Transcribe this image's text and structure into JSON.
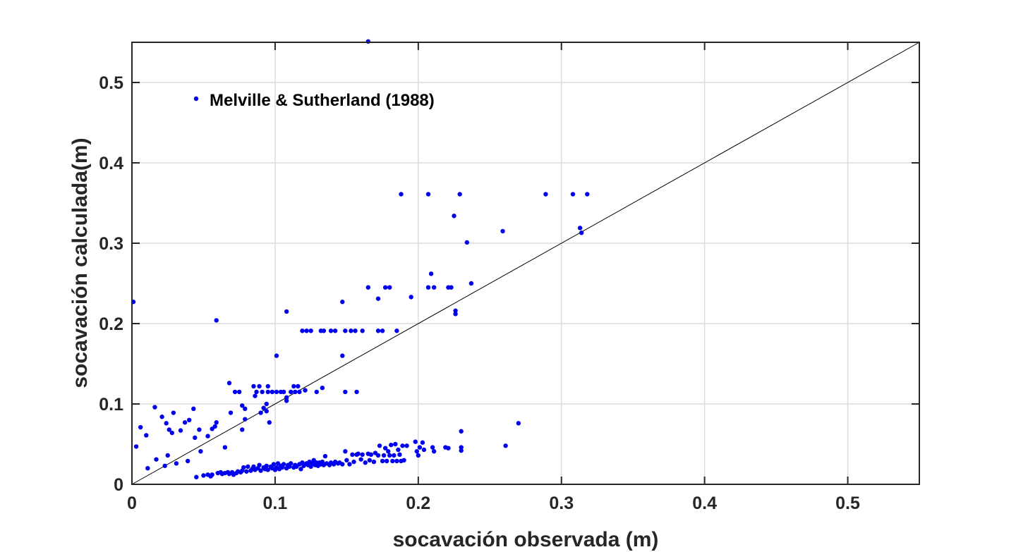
{
  "chart_data": {
    "type": "scatter",
    "xlabel": "socavación observada (m)",
    "ylabel": "socavación calculada(m)",
    "xlim": [
      0,
      0.55
    ],
    "ylim": [
      0,
      0.55
    ],
    "xticks": [
      0,
      0.1,
      0.2,
      0.3,
      0.4,
      0.5
    ],
    "yticks": [
      0,
      0.1,
      0.2,
      0.3,
      0.4,
      0.5
    ],
    "xtick_labels": [
      "0",
      "0.1",
      "0.2",
      "0.3",
      "0.4",
      "0.5"
    ],
    "ytick_labels": [
      "0",
      "0.1",
      "0.2",
      "0.3",
      "0.4",
      "0.5"
    ],
    "grid": true,
    "legend_position": "top-left",
    "reference_line": {
      "from": [
        0,
        0
      ],
      "to": [
        0.55,
        0.55
      ],
      "color": "#000000"
    },
    "colors": {
      "marker": "#0000ee",
      "axis": "#262626",
      "grid": "#dcdcdc"
    },
    "series": [
      {
        "name": "Melville & Sutherland (1988)",
        "points": [
          [
            0.165,
            0.551
          ],
          [
            0.001,
            0.227
          ],
          [
            0.188,
            0.361
          ],
          [
            0.207,
            0.361
          ],
          [
            0.229,
            0.361
          ],
          [
            0.289,
            0.361
          ],
          [
            0.308,
            0.361
          ],
          [
            0.318,
            0.361
          ],
          [
            0.225,
            0.334
          ],
          [
            0.259,
            0.315
          ],
          [
            0.313,
            0.319
          ],
          [
            0.314,
            0.313
          ],
          [
            0.234,
            0.301
          ],
          [
            0.209,
            0.262
          ],
          [
            0.207,
            0.245
          ],
          [
            0.211,
            0.245
          ],
          [
            0.221,
            0.245
          ],
          [
            0.223,
            0.245
          ],
          [
            0.165,
            0.245
          ],
          [
            0.177,
            0.245
          ],
          [
            0.18,
            0.245
          ],
          [
            0.237,
            0.25
          ],
          [
            0.172,
            0.231
          ],
          [
            0.195,
            0.233
          ],
          [
            0.147,
            0.227
          ],
          [
            0.226,
            0.216
          ],
          [
            0.226,
            0.212
          ],
          [
            0.108,
            0.215
          ],
          [
            0.059,
            0.204
          ],
          [
            0.119,
            0.191
          ],
          [
            0.122,
            0.191
          ],
          [
            0.125,
            0.191
          ],
          [
            0.132,
            0.191
          ],
          [
            0.134,
            0.191
          ],
          [
            0.139,
            0.191
          ],
          [
            0.142,
            0.191
          ],
          [
            0.149,
            0.191
          ],
          [
            0.153,
            0.191
          ],
          [
            0.156,
            0.191
          ],
          [
            0.161,
            0.191
          ],
          [
            0.172,
            0.191
          ],
          [
            0.175,
            0.191
          ],
          [
            0.185,
            0.191
          ],
          [
            0.101,
            0.16
          ],
          [
            0.147,
            0.16
          ],
          [
            0.068,
            0.126
          ],
          [
            0.085,
            0.122
          ],
          [
            0.089,
            0.122
          ],
          [
            0.095,
            0.122
          ],
          [
            0.113,
            0.122
          ],
          [
            0.116,
            0.122
          ],
          [
            0.133,
            0.12
          ],
          [
            0.072,
            0.115
          ],
          [
            0.075,
            0.115
          ],
          [
            0.087,
            0.115
          ],
          [
            0.091,
            0.115
          ],
          [
            0.095,
            0.115
          ],
          [
            0.098,
            0.115
          ],
          [
            0.101,
            0.115
          ],
          [
            0.104,
            0.115
          ],
          [
            0.106,
            0.115
          ],
          [
            0.111,
            0.115
          ],
          [
            0.114,
            0.115
          ],
          [
            0.117,
            0.115
          ],
          [
            0.121,
            0.117
          ],
          [
            0.129,
            0.115
          ],
          [
            0.149,
            0.115
          ],
          [
            0.157,
            0.115
          ],
          [
            0.108,
            0.108
          ],
          [
            0.108,
            0.104
          ],
          [
            0.094,
            0.1
          ],
          [
            0.077,
            0.098
          ],
          [
            0.079,
            0.094
          ],
          [
            0.092,
            0.095
          ],
          [
            0.094,
            0.091
          ],
          [
            0.09,
            0.089
          ],
          [
            0.069,
            0.089
          ],
          [
            0.079,
            0.081
          ],
          [
            0.077,
            0.068
          ],
          [
            0.065,
            0.046
          ],
          [
            0.096,
            0.077
          ],
          [
            0.086,
            0.11
          ],
          [
            0.016,
            0.096
          ],
          [
            0.029,
            0.089
          ],
          [
            0.043,
            0.094
          ],
          [
            0.021,
            0.084
          ],
          [
            0.024,
            0.076
          ],
          [
            0.037,
            0.077
          ],
          [
            0.04,
            0.08
          ],
          [
            0.059,
            0.077
          ],
          [
            0.058,
            0.072
          ],
          [
            0.056,
            0.069
          ],
          [
            0.006,
            0.071
          ],
          [
            0.034,
            0.067
          ],
          [
            0.028,
            0.064
          ],
          [
            0.047,
            0.068
          ],
          [
            0.053,
            0.06
          ],
          [
            0.044,
            0.058
          ],
          [
            0.01,
            0.061
          ],
          [
            0.026,
            0.068
          ],
          [
            0.003,
            0.047
          ],
          [
            0.048,
            0.041
          ],
          [
            0.039,
            0.029
          ],
          [
            0.017,
            0.031
          ],
          [
            0.025,
            0.036
          ],
          [
            0.011,
            0.02
          ],
          [
            0.031,
            0.026
          ],
          [
            0.023,
            0.023
          ],
          [
            0.045,
            0.009
          ],
          [
            0.05,
            0.011
          ],
          [
            0.053,
            0.012
          ],
          [
            0.056,
            0.012
          ],
          [
            0.055,
            0.01
          ],
          [
            0.06,
            0.014
          ],
          [
            0.062,
            0.015
          ],
          [
            0.063,
            0.013
          ],
          [
            0.065,
            0.014
          ],
          [
            0.067,
            0.015
          ],
          [
            0.068,
            0.013
          ],
          [
            0.07,
            0.015
          ],
          [
            0.071,
            0.012
          ],
          [
            0.073,
            0.014
          ],
          [
            0.074,
            0.016
          ],
          [
            0.076,
            0.015
          ],
          [
            0.077,
            0.017
          ],
          [
            0.078,
            0.021
          ],
          [
            0.08,
            0.016
          ],
          [
            0.081,
            0.022
          ],
          [
            0.083,
            0.017
          ],
          [
            0.084,
            0.019
          ],
          [
            0.085,
            0.022
          ],
          [
            0.086,
            0.018
          ],
          [
            0.088,
            0.02
          ],
          [
            0.089,
            0.024
          ],
          [
            0.09,
            0.017
          ],
          [
            0.092,
            0.021
          ],
          [
            0.093,
            0.019
          ],
          [
            0.094,
            0.023
          ],
          [
            0.095,
            0.018
          ],
          [
            0.097,
            0.022
          ],
          [
            0.098,
            0.02
          ],
          [
            0.099,
            0.025
          ],
          [
            0.1,
            0.018
          ],
          [
            0.101,
            0.021
          ],
          [
            0.102,
            0.026
          ],
          [
            0.103,
            0.019
          ],
          [
            0.104,
            0.023
          ],
          [
            0.105,
            0.021
          ],
          [
            0.106,
            0.025
          ],
          [
            0.108,
            0.02
          ],
          [
            0.109,
            0.024
          ],
          [
            0.11,
            0.022
          ],
          [
            0.111,
            0.026
          ],
          [
            0.113,
            0.021
          ],
          [
            0.114,
            0.024
          ],
          [
            0.115,
            0.022
          ],
          [
            0.117,
            0.025
          ],
          [
            0.118,
            0.019
          ],
          [
            0.119,
            0.027
          ],
          [
            0.12,
            0.023
          ],
          [
            0.122,
            0.026
          ],
          [
            0.123,
            0.024
          ],
          [
            0.124,
            0.028
          ],
          [
            0.125,
            0.022
          ],
          [
            0.126,
            0.026
          ],
          [
            0.127,
            0.03
          ],
          [
            0.128,
            0.024
          ],
          [
            0.129,
            0.027
          ],
          [
            0.13,
            0.023
          ],
          [
            0.131,
            0.027
          ],
          [
            0.132,
            0.025
          ],
          [
            0.133,
            0.028
          ],
          [
            0.134,
            0.024
          ],
          [
            0.135,
            0.035
          ],
          [
            0.136,
            0.026
          ],
          [
            0.138,
            0.024
          ],
          [
            0.139,
            0.027
          ],
          [
            0.141,
            0.025
          ],
          [
            0.142,
            0.028
          ],
          [
            0.144,
            0.026
          ],
          [
            0.145,
            0.027
          ],
          [
            0.147,
            0.025
          ],
          [
            0.149,
            0.041
          ],
          [
            0.15,
            0.03
          ],
          [
            0.152,
            0.025
          ],
          [
            0.154,
            0.037
          ],
          [
            0.155,
            0.028
          ],
          [
            0.157,
            0.037
          ],
          [
            0.158,
            0.038
          ],
          [
            0.16,
            0.031
          ],
          [
            0.161,
            0.037
          ],
          [
            0.163,
            0.027
          ],
          [
            0.165,
            0.038
          ],
          [
            0.166,
            0.03
          ],
          [
            0.167,
            0.037
          ],
          [
            0.169,
            0.028
          ],
          [
            0.17,
            0.039
          ],
          [
            0.172,
            0.036
          ],
          [
            0.173,
            0.048
          ],
          [
            0.175,
            0.029
          ],
          [
            0.176,
            0.036
          ],
          [
            0.177,
            0.045
          ],
          [
            0.178,
            0.029
          ],
          [
            0.179,
            0.041
          ],
          [
            0.18,
            0.036
          ],
          [
            0.181,
            0.049
          ],
          [
            0.182,
            0.029
          ],
          [
            0.183,
            0.036
          ],
          [
            0.184,
            0.05
          ],
          [
            0.185,
            0.029
          ],
          [
            0.186,
            0.043
          ],
          [
            0.187,
            0.037
          ],
          [
            0.188,
            0.029
          ],
          [
            0.189,
            0.048
          ],
          [
            0.19,
            0.03
          ],
          [
            0.192,
            0.048
          ],
          [
            0.198,
            0.053
          ],
          [
            0.199,
            0.041
          ],
          [
            0.2,
            0.036
          ],
          [
            0.201,
            0.046
          ],
          [
            0.203,
            0.052
          ],
          [
            0.204,
            0.043
          ],
          [
            0.21,
            0.046
          ],
          [
            0.211,
            0.041
          ],
          [
            0.219,
            0.046
          ],
          [
            0.221,
            0.045
          ],
          [
            0.23,
            0.066
          ],
          [
            0.23,
            0.046
          ],
          [
            0.23,
            0.042
          ],
          [
            0.261,
            0.048
          ],
          [
            0.27,
            0.076
          ]
        ]
      }
    ]
  }
}
